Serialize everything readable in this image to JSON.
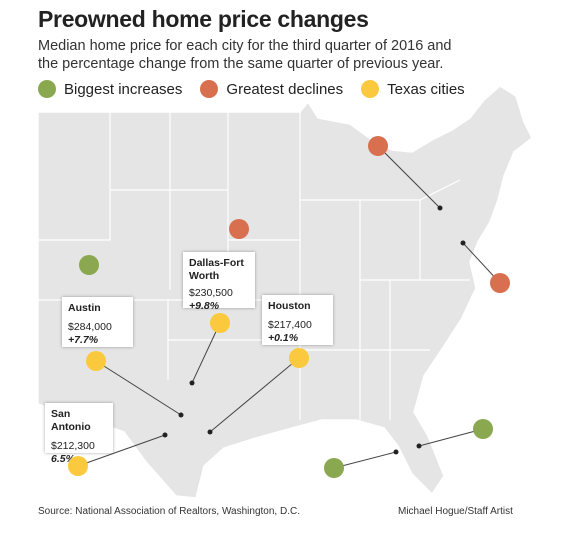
{
  "header": {
    "title": "Preowned home price changes",
    "subtitle": [
      "Median home price for each city for the third quarter of 2016 and",
      "the percentage change from the same quarter of previous year."
    ]
  },
  "legend": [
    {
      "label": "Biggest increases",
      "color": "#8aa84f"
    },
    {
      "label": "Greatest declines",
      "color": "#d8704f"
    },
    {
      "label": "Texas cities",
      "color": "#fbc93d"
    }
  ],
  "cities": [
    {
      "name": "Dallas-Fort Worth",
      "price": "$230,500",
      "change": "+9.8%"
    },
    {
      "name": "Austin",
      "price": "$284,000",
      "change": "+7.7%"
    },
    {
      "name": "Houston",
      "price": "$217,400",
      "change": "+0.1%"
    },
    {
      "name": "San Antonio",
      "price": "$212,300",
      "change": "6.5%"
    }
  ],
  "footer": {
    "source": "Source: National Association of Realtors, Washington, D.C.",
    "credit": "Michael Hogue/Staff Artist"
  }
}
